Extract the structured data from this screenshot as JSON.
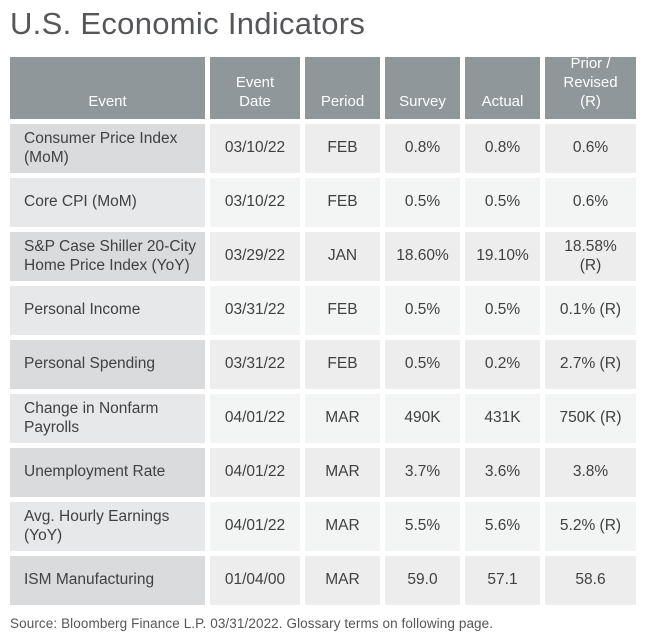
{
  "title": "U.S. Economic Indicators",
  "colors": {
    "header_bg": "#8F979A",
    "header_text": "#FFFFFF",
    "row_odd_event_bg": "#DADBDC",
    "row_odd_cell_bg": "#EDEDEE",
    "row_even_event_bg": "#E7E8E9",
    "row_even_cell_bg": "#F3F4F4",
    "body_text": "#3F4142",
    "title_text": "#54565A"
  },
  "header": {
    "event": "Event",
    "date": "Event\nDate",
    "period": "Period",
    "survey": "Survey",
    "actual": "Actual",
    "prior": "Prior /\nRevised\n(R)"
  },
  "table": {
    "rows": [
      {
        "event": "Consumer Price Index (MoM)",
        "date": "03/10/22",
        "period": "FEB",
        "survey": "0.8%",
        "actual": "0.8%",
        "prior": "0.6%"
      },
      {
        "event": "Core CPI (MoM)",
        "date": "03/10/22",
        "period": "FEB",
        "survey": "0.5%",
        "actual": "0.5%",
        "prior": "0.6%"
      },
      {
        "event": "S&P Case Shiller 20-City Home Price Index (YoY)",
        "date": "03/29/22",
        "period": "JAN",
        "survey": "18.60%",
        "actual": "19.10%",
        "prior": "18.58%\n(R)"
      },
      {
        "event": "Personal Income",
        "date": "03/31/22",
        "period": "FEB",
        "survey": "0.5%",
        "actual": "0.5%",
        "prior": "0.1% (R)"
      },
      {
        "event": "Personal Spending",
        "date": "03/31/22",
        "period": "FEB",
        "survey": "0.5%",
        "actual": "0.2%",
        "prior": "2.7% (R)"
      },
      {
        "event": "Change in Nonfarm Payrolls",
        "date": "04/01/22",
        "period": "MAR",
        "survey": "490K",
        "actual": "431K",
        "prior": "750K (R)"
      },
      {
        "event": "Unemployment Rate",
        "date": "04/01/22",
        "period": "MAR",
        "survey": "3.7%",
        "actual": "3.6%",
        "prior": "3.8%"
      },
      {
        "event": "Avg. Hourly Earnings (YoY)",
        "date": "04/01/22",
        "period": "MAR",
        "survey": "5.5%",
        "actual": "5.6%",
        "prior": "5.2% (R)"
      },
      {
        "event": "ISM Manufacturing",
        "date": "01/04/00",
        "period": "MAR",
        "survey": "59.0",
        "actual": "57.1",
        "prior": "58.6"
      }
    ]
  },
  "footer": {
    "source": "Source: Bloomberg Finance L.P. 03/31/2022. Glossary terms on following page."
  },
  "chart_data": {
    "type": "table",
    "title": "U.S. Economic Indicators",
    "columns": [
      "Event",
      "Event Date",
      "Period",
      "Survey",
      "Actual",
      "Prior / Revised (R)"
    ],
    "rows": [
      [
        "Consumer Price Index (MoM)",
        "03/10/22",
        "FEB",
        "0.8%",
        "0.8%",
        "0.6%"
      ],
      [
        "Core CPI (MoM)",
        "03/10/22",
        "FEB",
        "0.5%",
        "0.5%",
        "0.6%"
      ],
      [
        "S&P Case Shiller 20-City Home Price Index (YoY)",
        "03/29/22",
        "JAN",
        "18.60%",
        "19.10%",
        "18.58% (R)"
      ],
      [
        "Personal Income",
        "03/31/22",
        "FEB",
        "0.5%",
        "0.5%",
        "0.1% (R)"
      ],
      [
        "Personal Spending",
        "03/31/22",
        "FEB",
        "0.5%",
        "0.2%",
        "2.7% (R)"
      ],
      [
        "Change in Nonfarm Payrolls",
        "04/01/22",
        "MAR",
        "490K",
        "431K",
        "750K (R)"
      ],
      [
        "Unemployment Rate",
        "04/01/22",
        "MAR",
        "3.7%",
        "3.6%",
        "3.8%"
      ],
      [
        "Avg. Hourly Earnings (YoY)",
        "04/01/22",
        "MAR",
        "5.5%",
        "5.6%",
        "5.2% (R)"
      ],
      [
        "ISM Manufacturing",
        "01/04/00",
        "MAR",
        "59.0",
        "57.1",
        "58.6"
      ]
    ],
    "source": "Bloomberg Finance L.P. 03/31/2022"
  }
}
